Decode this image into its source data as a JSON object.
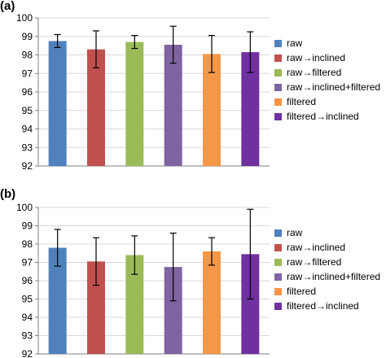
{
  "chart_data": [
    {
      "type": "bar",
      "panel_label": "(a)",
      "categories": [
        "raw",
        "raw→inclined",
        "raw→filtered",
        "raw→inclined+filtered",
        "filtered",
        "filtered→inclined"
      ],
      "values": [
        98.75,
        98.3,
        98.7,
        98.55,
        98.05,
        98.15
      ],
      "error": [
        0.35,
        1.0,
        0.35,
        1.0,
        1.0,
        1.1
      ],
      "ylim": [
        92,
        100
      ],
      "yticks": [
        "92",
        "93",
        "94",
        "95",
        "96",
        "97",
        "98",
        "99",
        "100"
      ],
      "grid": true,
      "legend_position": "right"
    },
    {
      "type": "bar",
      "panel_label": "(b)",
      "categories": [
        "raw",
        "raw→inclined",
        "raw→filtered",
        "raw→inclined+filtered",
        "filtered",
        "filtered→inclined"
      ],
      "values": [
        97.8,
        97.05,
        97.4,
        96.75,
        97.6,
        97.45
      ],
      "error": [
        1.0,
        1.3,
        1.05,
        1.85,
        0.75,
        2.45
      ],
      "ylim": [
        92,
        100
      ],
      "yticks": [
        "92",
        "93",
        "94",
        "95",
        "96",
        "97",
        "98",
        "99",
        "100"
      ],
      "grid": true,
      "legend_position": "right"
    }
  ],
  "colors": [
    "#4f81bd",
    "#c0504d",
    "#9bbb59",
    "#8064a2",
    "#f79646",
    "#7030a0"
  ]
}
